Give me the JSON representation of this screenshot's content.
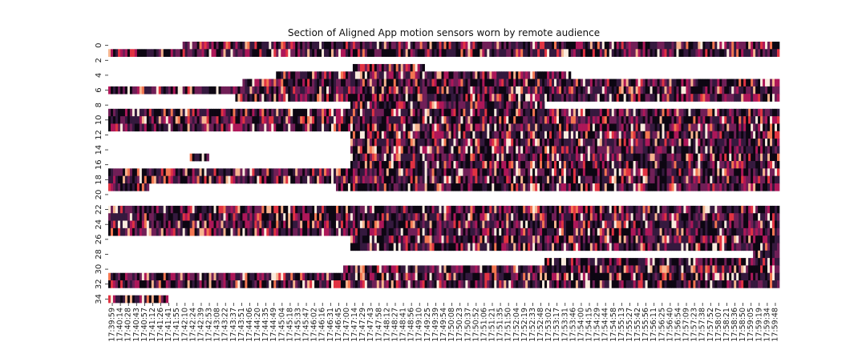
{
  "chart_data": {
    "type": "heatmap",
    "title": "Section of Aligned App motion sensors worn by remote audience",
    "xlabel": "",
    "ylabel": "",
    "colorbar": false,
    "colormap": "rocket",
    "colormap_stops": [
      "#0d0612",
      "#35193e",
      "#701f57",
      "#ad1759",
      "#e13342",
      "#f37651",
      "#f6b48f",
      "#faebdd"
    ],
    "missing_color": "#ffffff",
    "y_ticks": [
      "0",
      "2",
      "4",
      "6",
      "8",
      "10",
      "12",
      "14",
      "16",
      "18",
      "20",
      "22",
      "24",
      "26",
      "28",
      "30",
      "32",
      "34"
    ],
    "x_ticks": [
      "17:39:59",
      "17:40:14",
      "17:40:28",
      "17:40:43",
      "17:40:57",
      "17:41:12",
      "17:41:26",
      "17:41:41",
      "17:41:55",
      "17:42:10",
      "17:42:24",
      "17:42:39",
      "17:42:53",
      "17:43:08",
      "17:43:22",
      "17:43:37",
      "17:43:51",
      "17:44:06",
      "17:44:20",
      "17:44:35",
      "17:44:49",
      "17:45:04",
      "17:45:18",
      "17:45:33",
      "17:45:47",
      "17:46:02",
      "17:46:16",
      "17:46:31",
      "17:46:45",
      "17:47:00",
      "17:47:14",
      "17:47:29",
      "17:47:43",
      "17:47:58",
      "17:48:12",
      "17:48:27",
      "17:48:41",
      "17:48:56",
      "17:49:10",
      "17:49:25",
      "17:49:39",
      "17:49:54",
      "17:50:08",
      "17:50:23",
      "17:50:37",
      "17:50:52",
      "17:51:06",
      "17:51:21",
      "17:51:35",
      "17:51:50",
      "17:52:04",
      "17:52:19",
      "17:52:33",
      "17:52:48",
      "17:53:02",
      "17:53:17",
      "17:53:31",
      "17:53:46",
      "17:54:00",
      "17:54:15",
      "17:54:29",
      "17:54:44",
      "17:54:58",
      "17:55:13",
      "17:55:27",
      "17:55:42",
      "17:55:56",
      "17:56:11",
      "17:56:25",
      "17:56:40",
      "17:56:54",
      "17:57:09",
      "17:57:23",
      "17:57:38",
      "17:57:52",
      "17:58:07",
      "17:58:21",
      "17:58:36",
      "17:58:50",
      "17:59:05",
      "17:59:19",
      "17:59:34",
      "17:59:48"
    ],
    "rows": 35,
    "active_spans": [
      [
        [
          0.11,
          1.0
        ]
      ],
      [
        [
          0.0,
          1.0
        ]
      ],
      [],
      [
        [
          0.365,
          0.47
        ]
      ],
      [
        [
          0.25,
          0.69
        ]
      ],
      [
        [
          0.2,
          1.0
        ]
      ],
      [
        [
          0.0,
          1.0
        ]
      ],
      [
        [
          0.19,
          1.0
        ]
      ],
      [
        [
          0.36,
          0.65
        ]
      ],
      [
        [
          0.0,
          1.0
        ]
      ],
      [
        [
          0.0,
          1.0
        ]
      ],
      [
        [
          0.0,
          1.0
        ]
      ],
      [
        [
          0.36,
          1.0
        ]
      ],
      [
        [
          0.36,
          1.0
        ]
      ],
      [
        [
          0.36,
          1.0
        ]
      ],
      [
        [
          0.12,
          0.15
        ],
        [
          0.36,
          1.0
        ]
      ],
      [
        [
          0.36,
          1.0
        ]
      ],
      [
        [
          0.0,
          1.0
        ]
      ],
      [
        [
          0.0,
          1.0
        ]
      ],
      [
        [
          0.0,
          0.06
        ],
        [
          0.34,
          1.0
        ]
      ],
      [],
      [],
      [
        [
          0.0,
          1.0
        ]
      ],
      [
        [
          0.0,
          1.0
        ]
      ],
      [
        [
          0.0,
          0.18
        ],
        [
          0.15,
          1.0
        ]
      ],
      [
        [
          0.0,
          1.0
        ]
      ],
      [
        [
          0.36,
          1.0
        ]
      ],
      [
        [
          0.36,
          1.0
        ]
      ],
      [
        [
          0.96,
          1.0
        ]
      ],
      [
        [
          0.65,
          1.0
        ]
      ],
      [
        [
          0.35,
          1.0
        ]
      ],
      [
        [
          0.0,
          1.0
        ]
      ],
      [
        [
          0.0,
          1.0
        ]
      ],
      [],
      [
        [
          0.0,
          0.09
        ]
      ]
    ]
  }
}
